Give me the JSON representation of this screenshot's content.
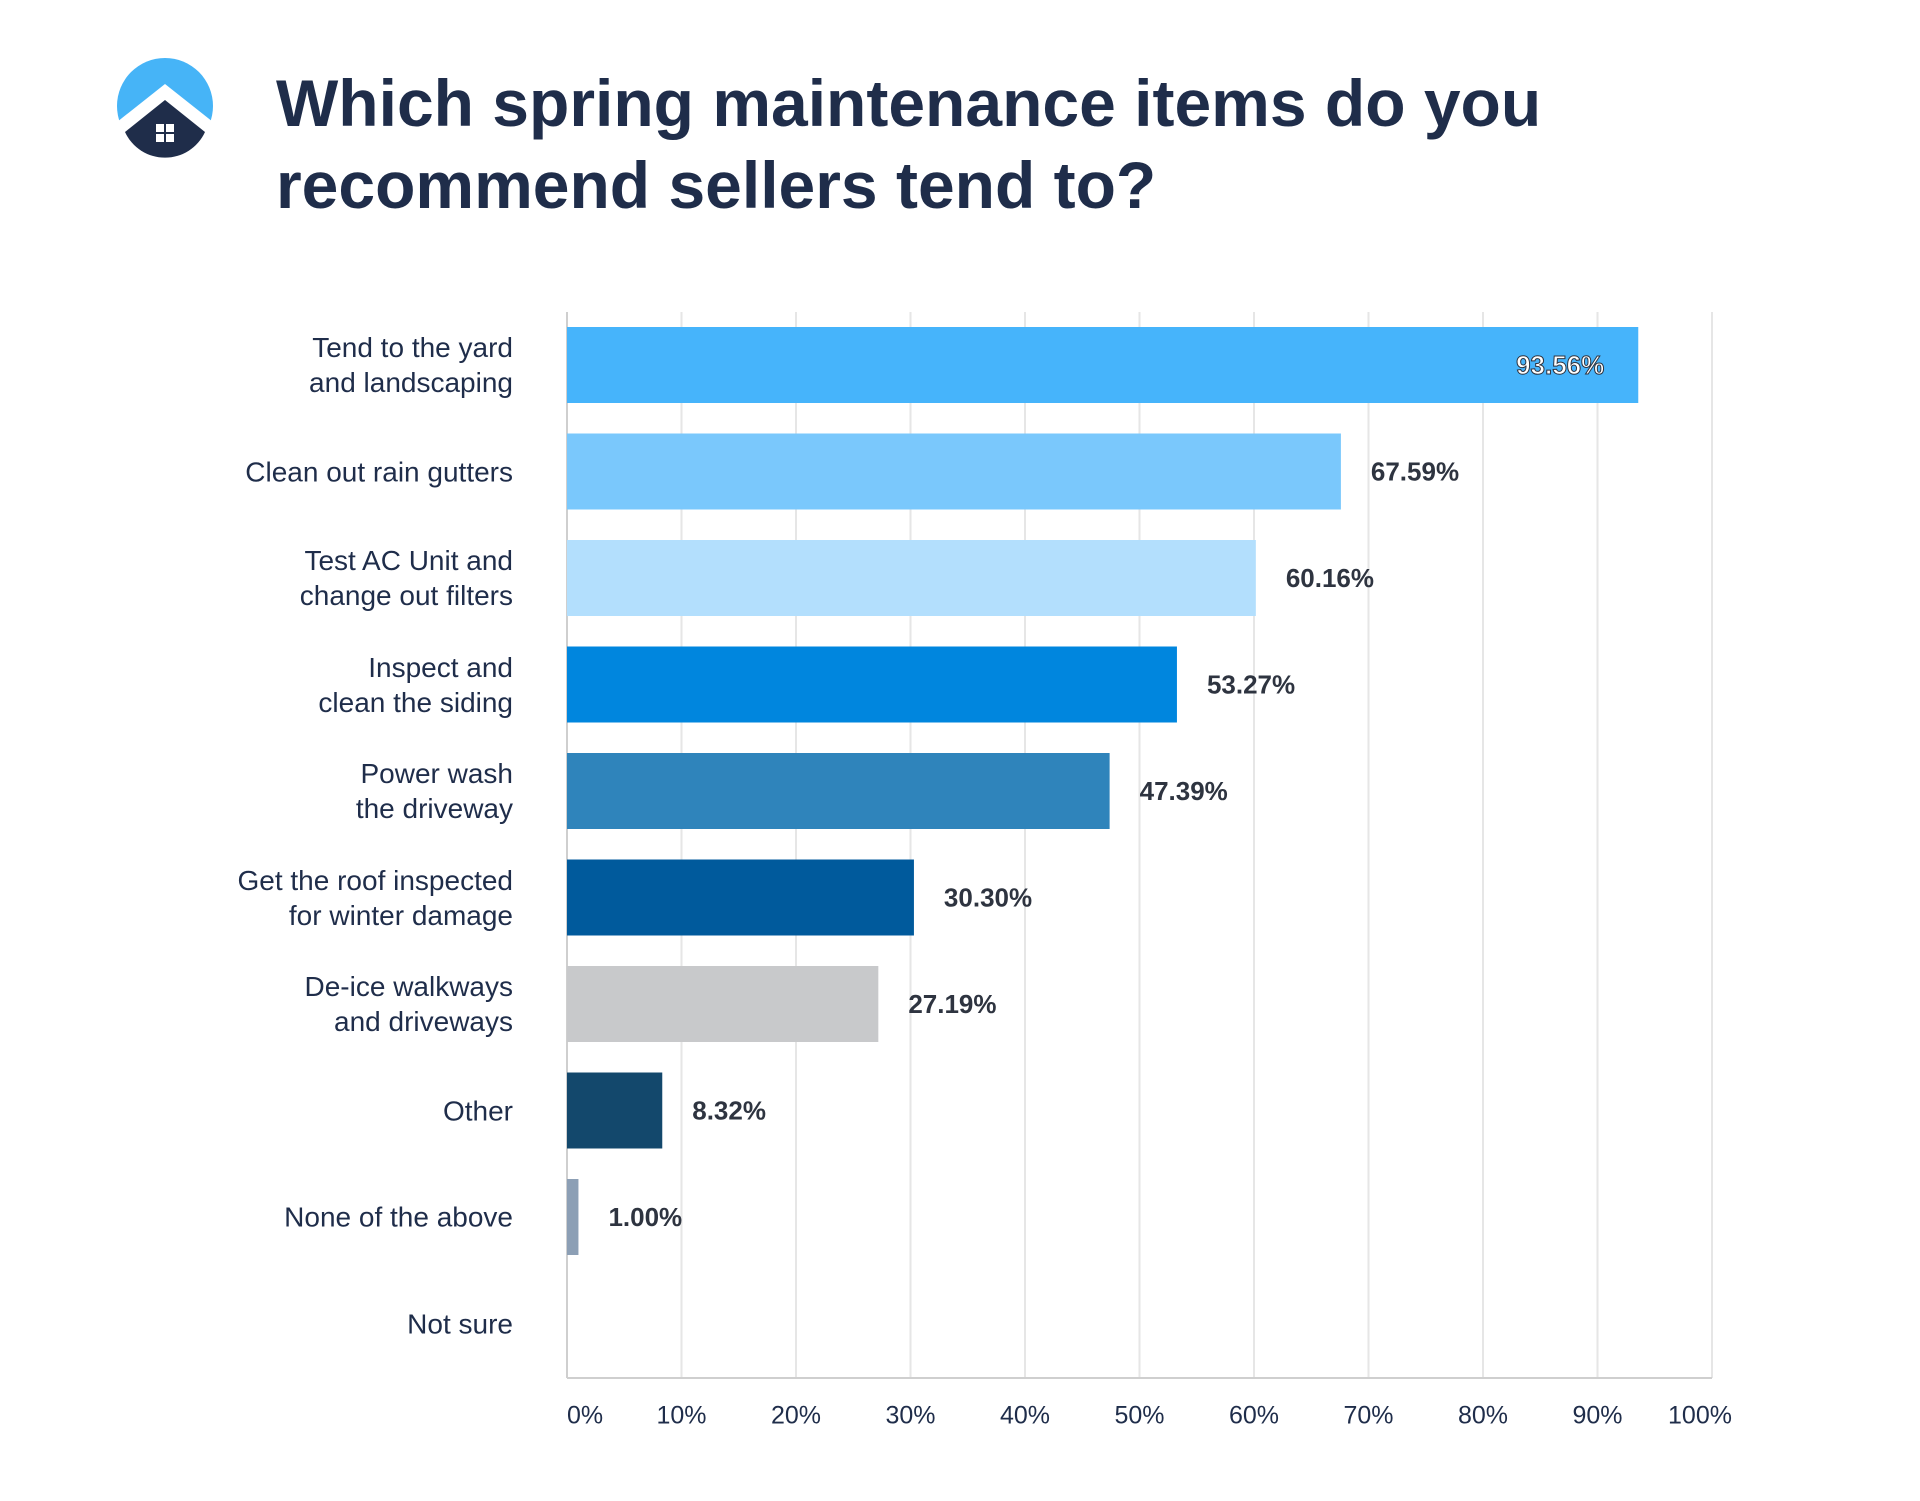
{
  "chart_data": {
    "type": "bar",
    "orientation": "horizontal",
    "title": "Which spring maintenance items do you recommend sellers tend to?",
    "categories": [
      "Tend to the yard\nand landscaping",
      "Clean out rain gutters",
      "Test AC Unit and\nchange out filters",
      "Inspect and\nclean the siding",
      "Power wash\nthe driveway",
      "Get the roof inspected\nfor winter damage",
      "De-ice walkways\nand driveways",
      "Other",
      "None of the above",
      "Not sure"
    ],
    "values": [
      93.56,
      67.59,
      60.16,
      53.27,
      47.39,
      30.3,
      27.19,
      8.32,
      1.0,
      null
    ],
    "value_labels": [
      "93.56%",
      "67.59%",
      "60.16%",
      "53.27%",
      "47.39%",
      "30.30%",
      "27.19%",
      "8.32%",
      "1.00%",
      null
    ],
    "colors": [
      "#46b4fb",
      "#7ac8fc",
      "#b3dffd",
      "#0086de",
      "#2f84bb",
      "#005a9c",
      "#c8c9cb",
      "#13486c",
      "#8c9fb5",
      "#cccccc"
    ],
    "xlim": [
      0,
      100
    ],
    "xticks": [
      {
        "value": 0,
        "label": "0%"
      },
      {
        "value": 10,
        "label": "10%"
      },
      {
        "value": 20,
        "label": "20%"
      },
      {
        "value": 30,
        "label": "30%"
      },
      {
        "value": 40,
        "label": "40%"
      },
      {
        "value": 50,
        "label": "50%"
      },
      {
        "value": 60,
        "label": "60%"
      },
      {
        "value": 70,
        "label": "70%"
      },
      {
        "value": 80,
        "label": "80%"
      },
      {
        "value": 90,
        "label": "90%"
      },
      {
        "value": 100,
        "label": "100%"
      }
    ],
    "grid": true
  }
}
